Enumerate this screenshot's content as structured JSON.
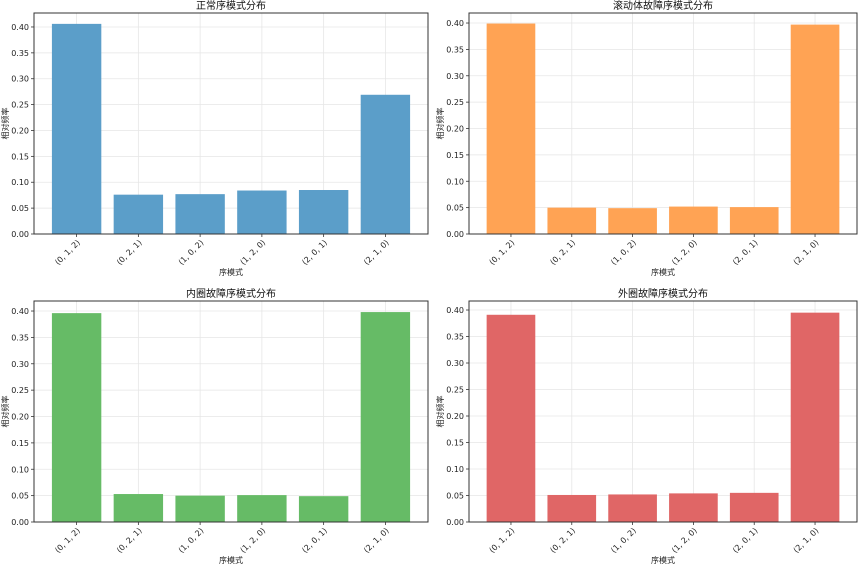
{
  "chart_data": [
    {
      "type": "bar",
      "title": "正常序模式分布",
      "xlabel": "序模式",
      "ylabel": "相对频率",
      "categories": [
        "(0, 1, 2)",
        "(0, 2, 1)",
        "(1, 0, 2)",
        "(1, 2, 0)",
        "(2, 0, 1)",
        "(2, 1, 0)"
      ],
      "values": [
        0.406,
        0.076,
        0.077,
        0.084,
        0.085,
        0.269
      ],
      "ylim": [
        0,
        0.427
      ],
      "yticks": [
        "0.00",
        "0.05",
        "0.10",
        "0.15",
        "0.20",
        "0.25",
        "0.30",
        "0.35",
        "0.40"
      ],
      "color": "#5b9ec9",
      "grid": true
    },
    {
      "type": "bar",
      "title": "滚动体故障序模式分布",
      "xlabel": "序模式",
      "ylabel": "相对频率",
      "categories": [
        "(0, 1, 2)",
        "(0, 2, 1)",
        "(1, 0, 2)",
        "(1, 2, 0)",
        "(2, 0, 1)",
        "(2, 1, 0)"
      ],
      "values": [
        0.399,
        0.05,
        0.049,
        0.052,
        0.051,
        0.397
      ],
      "ylim": [
        0,
        0.419
      ],
      "yticks": [
        "0.00",
        "0.05",
        "0.10",
        "0.15",
        "0.20",
        "0.25",
        "0.30",
        "0.35",
        "0.40"
      ],
      "color": "#ffa354",
      "grid": true
    },
    {
      "type": "bar",
      "title": "内圈故障序模式分布",
      "xlabel": "序模式",
      "ylabel": "相对频率",
      "categories": [
        "(0, 1, 2)",
        "(0, 2, 1)",
        "(1, 0, 2)",
        "(1, 2, 0)",
        "(2, 0, 1)",
        "(2, 1, 0)"
      ],
      "values": [
        0.396,
        0.053,
        0.05,
        0.051,
        0.049,
        0.398
      ],
      "ylim": [
        0,
        0.419
      ],
      "yticks": [
        "0.00",
        "0.05",
        "0.10",
        "0.15",
        "0.20",
        "0.25",
        "0.30",
        "0.35",
        "0.40"
      ],
      "color": "#66bb66",
      "grid": true
    },
    {
      "type": "bar",
      "title": "外圈故障序模式分布",
      "xlabel": "序模式",
      "ylabel": "相对频率",
      "categories": [
        "(0, 1, 2)",
        "(0, 2, 1)",
        "(1, 0, 2)",
        "(1, 2, 0)",
        "(2, 0, 1)",
        "(2, 1, 0)"
      ],
      "values": [
        0.391,
        0.051,
        0.052,
        0.054,
        0.055,
        0.395
      ],
      "ylim": [
        0,
        0.417
      ],
      "yticks": [
        "0.00",
        "0.05",
        "0.10",
        "0.15",
        "0.20",
        "0.25",
        "0.30",
        "0.35",
        "0.40"
      ],
      "color": "#e06666",
      "grid": true
    }
  ]
}
